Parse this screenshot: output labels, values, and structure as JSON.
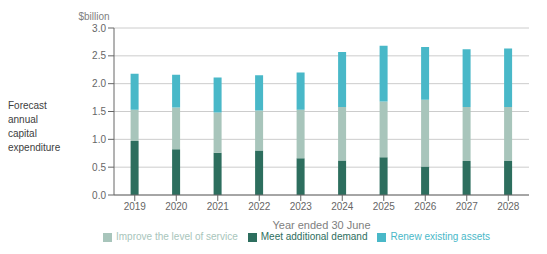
{
  "chart_data": {
    "type": "bar",
    "stacked": true,
    "xlabel": "Year ended 30 June",
    "ylabel": "Forecast\nannual\ncapital\nexpenditure",
    "annotations": [
      "$billion"
    ],
    "categories": [
      "2019",
      "2020",
      "2021",
      "2022",
      "2023",
      "2024",
      "2025",
      "2026",
      "2027",
      "2028"
    ],
    "series": [
      {
        "name": "Meet additional demand",
        "color": "#2d6e5e",
        "values": [
          0.97,
          0.82,
          0.76,
          0.8,
          0.66,
          0.62,
          0.68,
          0.51,
          0.61,
          0.61
        ]
      },
      {
        "name": "Improve the level of service",
        "color": "#a8c5bb",
        "values": [
          0.56,
          0.75,
          0.72,
          0.72,
          0.87,
          0.96,
          1.0,
          1.2,
          0.97,
          0.97
        ]
      },
      {
        "name": "Renew existing assets",
        "color": "#49b8c8",
        "values": [
          0.65,
          0.59,
          0.63,
          0.63,
          0.67,
          0.99,
          1.0,
          0.95,
          1.04,
          1.05
        ]
      }
    ],
    "ylim": [
      0,
      3.0
    ],
    "yticks": [
      {
        "value": 0,
        "label": "0.0"
      },
      0.5,
      {
        "value": 1,
        "label": "1.0"
      },
      1.5,
      {
        "value": 2,
        "label": "2.0"
      },
      2.5,
      {
        "value": 3,
        "label": "3.0"
      }
    ],
    "grid": true,
    "legend": "bottom"
  }
}
